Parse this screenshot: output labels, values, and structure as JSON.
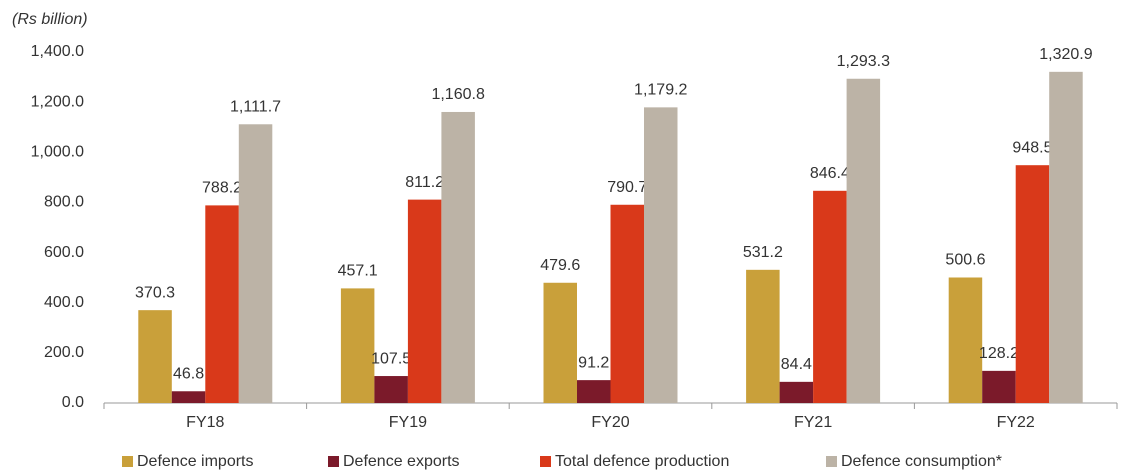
{
  "chart_data": {
    "type": "bar",
    "y_label": "(Rs billion)",
    "categories": [
      "FY18",
      "FY19",
      "FY20",
      "FY21",
      "FY22"
    ],
    "series": [
      {
        "name": "Defence imports",
        "color": "#c9a03a",
        "values": [
          370.3,
          457.1,
          479.6,
          531.2,
          500.6
        ],
        "value_labels": [
          "370.3",
          "457.1",
          "479.6",
          "531.2",
          "500.6"
        ]
      },
      {
        "name": "Defence exports",
        "color": "#7b1a2a",
        "values": [
          46.8,
          107.5,
          91.2,
          84.4,
          128.2
        ],
        "value_labels": [
          "46.8",
          "107.5",
          "91.2",
          "84.4",
          "128.2"
        ]
      },
      {
        "name": "Total defence production",
        "color": "#d9391a",
        "values": [
          788.2,
          811.2,
          790.7,
          846.4,
          948.5
        ],
        "value_labels": [
          "788.2",
          "811.2",
          "790.7",
          "846.4",
          "948.5"
        ]
      },
      {
        "name": "Defence consumption*",
        "color": "#bcb3a6",
        "values": [
          1111.7,
          1160.8,
          1179.2,
          1293.3,
          1320.9
        ],
        "value_labels": [
          "1,111.7",
          "1,160.8",
          "1,179.2",
          "1,293.3",
          "1,320.9"
        ]
      }
    ],
    "ylim": [
      0,
      1400
    ],
    "yticks": [
      {
        "value": 0,
        "label": "0.0"
      },
      {
        "value": 200,
        "label": "200.0"
      },
      {
        "value": 400,
        "label": "400.0"
      },
      {
        "value": 600,
        "label": "600.0"
      },
      {
        "value": 800,
        "label": "800.0"
      },
      {
        "value": 1000,
        "label": "1,000.0"
      },
      {
        "value": 1200,
        "label": "1,200.0"
      },
      {
        "value": 1400,
        "label": "1,400.0"
      }
    ],
    "grid": false
  }
}
